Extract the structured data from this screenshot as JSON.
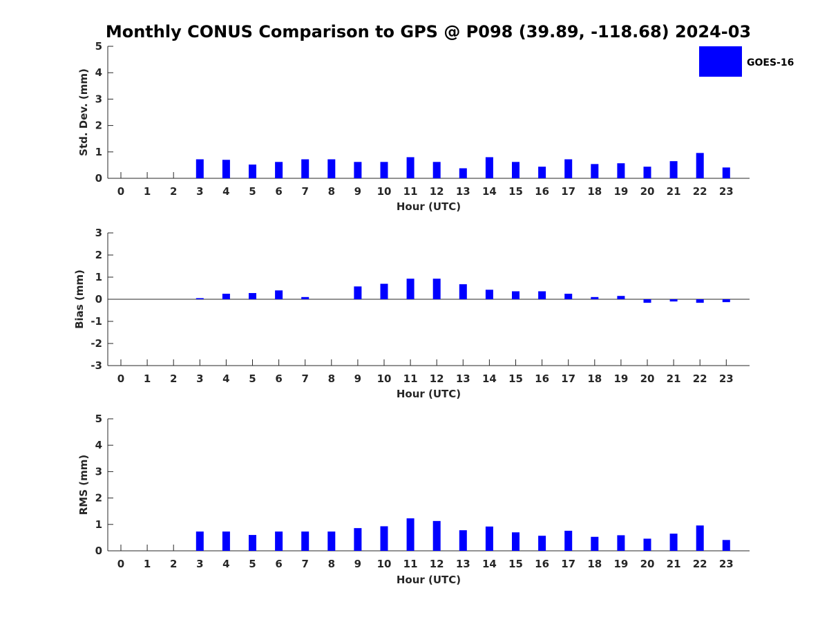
{
  "title": "Monthly CONUS Comparison to GPS @ P098 (39.89, -118.68) 2024-03",
  "legend": {
    "label": "GOES-16",
    "position": "top-right"
  },
  "colors": {
    "bar": "#0000ff",
    "axis": "#262626",
    "background": "#ffffff"
  },
  "chart_data": [
    {
      "type": "bar",
      "xlabel": "Hour (UTC)",
      "ylabel": "Std. Dev. (mm)",
      "ylim": [
        0,
        5
      ],
      "yticks": [
        0,
        1,
        2,
        3,
        4,
        5
      ],
      "categories": [
        "0",
        "1",
        "2",
        "3",
        "4",
        "5",
        "6",
        "7",
        "8",
        "9",
        "10",
        "11",
        "12",
        "13",
        "14",
        "15",
        "16",
        "17",
        "18",
        "19",
        "20",
        "21",
        "22",
        "23"
      ],
      "series": [
        {
          "name": "GOES-16",
          "values": [
            null,
            null,
            null,
            0.72,
            0.7,
            0.52,
            0.62,
            0.72,
            0.72,
            0.62,
            0.62,
            0.8,
            0.62,
            0.38,
            0.8,
            0.62,
            0.44,
            0.72,
            0.54,
            0.57,
            0.44,
            0.65,
            0.96,
            0.41
          ]
        }
      ]
    },
    {
      "type": "bar",
      "xlabel": "Hour (UTC)",
      "ylabel": "Bias (mm)",
      "ylim": [
        -3,
        3
      ],
      "yticks": [
        -3,
        -2,
        -1,
        0,
        1,
        2,
        3
      ],
      "categories": [
        "0",
        "1",
        "2",
        "3",
        "4",
        "5",
        "6",
        "7",
        "8",
        "9",
        "10",
        "11",
        "12",
        "13",
        "14",
        "15",
        "16",
        "17",
        "18",
        "19",
        "20",
        "21",
        "22",
        "23"
      ],
      "series": [
        {
          "name": "GOES-16",
          "values": [
            null,
            null,
            null,
            0.05,
            0.25,
            0.28,
            0.4,
            0.1,
            0.0,
            0.58,
            0.7,
            0.93,
            0.93,
            0.68,
            0.43,
            0.36,
            0.36,
            0.25,
            0.1,
            0.15,
            -0.16,
            -0.1,
            -0.16,
            -0.13
          ]
        }
      ]
    },
    {
      "type": "bar",
      "xlabel": "Hour (UTC)",
      "ylabel": "RMS (mm)",
      "ylim": [
        0,
        5
      ],
      "yticks": [
        0,
        1,
        2,
        3,
        4,
        5
      ],
      "categories": [
        "0",
        "1",
        "2",
        "3",
        "4",
        "5",
        "6",
        "7",
        "8",
        "9",
        "10",
        "11",
        "12",
        "13",
        "14",
        "15",
        "16",
        "17",
        "18",
        "19",
        "20",
        "21",
        "22",
        "23"
      ],
      "series": [
        {
          "name": "GOES-16",
          "values": [
            null,
            null,
            null,
            0.73,
            0.73,
            0.6,
            0.73,
            0.73,
            0.73,
            0.86,
            0.93,
            1.23,
            1.13,
            0.78,
            0.92,
            0.7,
            0.57,
            0.76,
            0.53,
            0.59,
            0.46,
            0.65,
            0.96,
            0.41
          ]
        }
      ]
    }
  ]
}
